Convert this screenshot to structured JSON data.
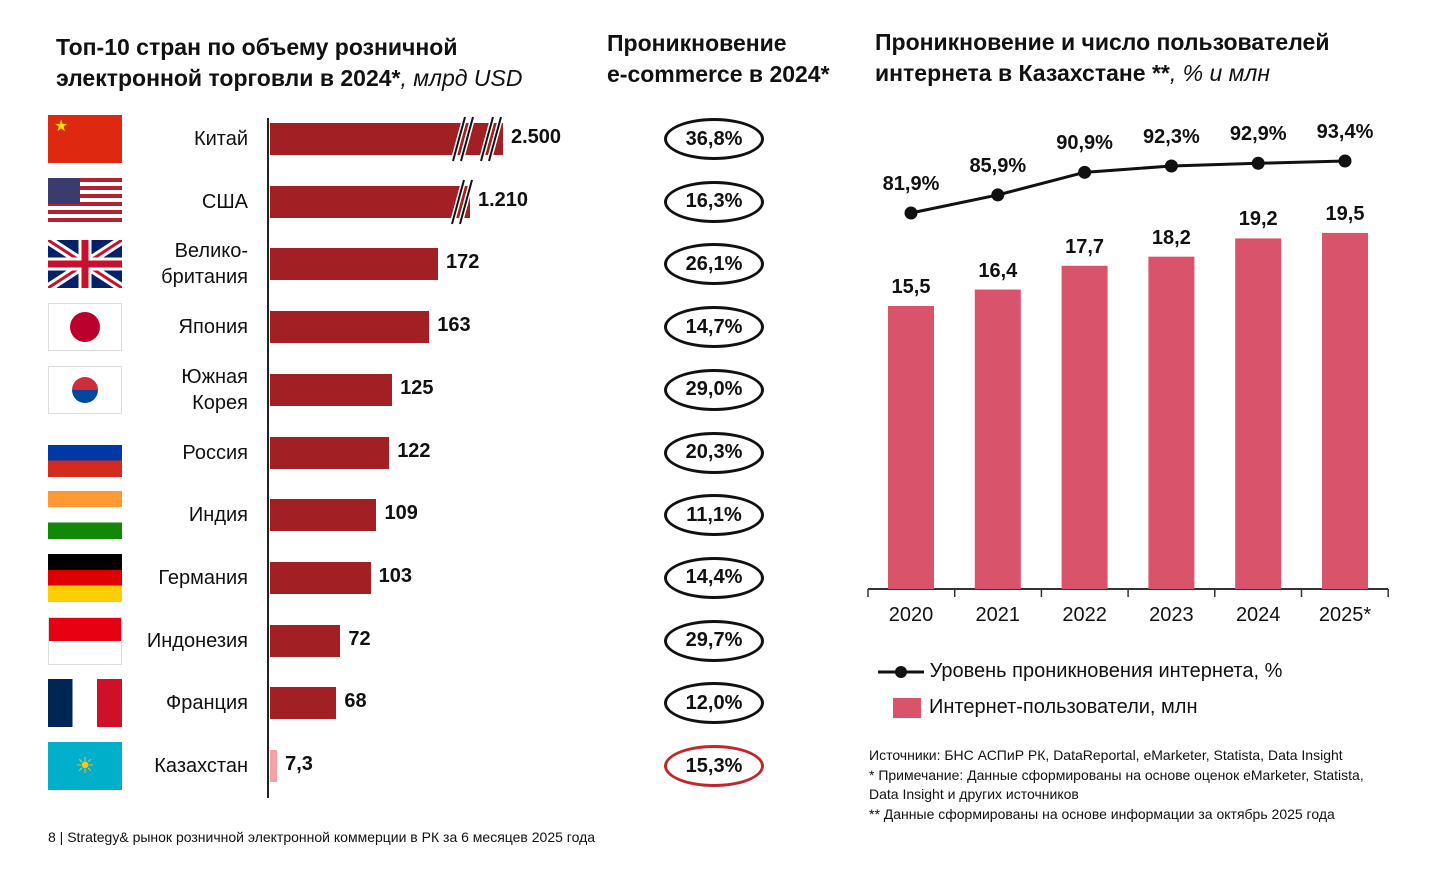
{
  "left": {
    "title1": "Топ-10 стран по объему розничной",
    "title2": "электронной торговли в 2024*",
    "unit": ", млрд USD"
  },
  "middle": {
    "title1": "Проникновение",
    "title2": "e-commerce в 2024*"
  },
  "right": {
    "title1": "Проникновение и число пользователей",
    "title2": "интернета в Казахстане **",
    "unit": ", % и млн"
  },
  "chart_data": [
    {
      "type": "bar",
      "orientation": "horizontal",
      "title": "Топ-10 стран по объему розничной электронной торговли в 2024*, млрд USD",
      "categories": [
        "Китай",
        "США",
        "Велико-британия",
        "Япония",
        "Южная Корея",
        "Россия",
        "Индия",
        "Германия",
        "Индонезия",
        "Франция",
        "Казахстан"
      ],
      "labels": [
        "2.500",
        "1.210",
        "172",
        "163",
        "125",
        "122",
        "109",
        "103",
        "72",
        "68",
        "7,3"
      ],
      "values": [
        2500,
        1210,
        172,
        163,
        125,
        122,
        109,
        103,
        72,
        68,
        7.3
      ],
      "axis_break": [
        true,
        true,
        false,
        false,
        false,
        false,
        false,
        false,
        false,
        false,
        false
      ],
      "highlight": "Казахстан",
      "penetration": [
        "36,8%",
        "16,3%",
        "26,1%",
        "14,7%",
        "29,0%",
        "20,3%",
        "11,1%",
        "14,4%",
        "29,7%",
        "12,0%",
        "15,3%"
      ]
    },
    {
      "type": "bar+line",
      "title": "Проникновение и число пользователей интернета в Казахстане **, % и млн",
      "categories": [
        "2020",
        "2021",
        "2022",
        "2023",
        "2024",
        "2025*"
      ],
      "series": [
        {
          "name": "Уровень проникновения интернета, %",
          "type": "line",
          "values": [
            81.9,
            85.9,
            90.9,
            92.3,
            92.9,
            93.4
          ],
          "labels": [
            "81,9%",
            "85,9%",
            "90,9%",
            "92,3%",
            "92,9%",
            "93,4%"
          ]
        },
        {
          "name": "Интернет-пользователи, млн",
          "type": "bar",
          "values": [
            15.5,
            16.4,
            17.7,
            18.2,
            19.2,
            19.5
          ],
          "labels": [
            "15,5",
            "16,4",
            "17,7",
            "18,2",
            "19,2",
            "19,5"
          ]
        }
      ]
    }
  ],
  "colors": {
    "bar": "#a21f23",
    "highlight": "#f3a3a5",
    "kz_bar": "#d9546a",
    "circle_highlight": "#c0272d"
  },
  "notes": [
    "Источники: БНС АСПиР РК, DataReportal, eMarketer, Statista, Data Insight",
    "* Примечание: Данные сформированы на основе оценок eMarketer, Statista,",
    "Data Insight и других источников",
    "** Данные сформированы на основе информации за октябрь 2025 года"
  ],
  "footer": "8 | Strategy& рынок розничной электронной коммерции в РК за 6 месяцев 2025 года"
}
